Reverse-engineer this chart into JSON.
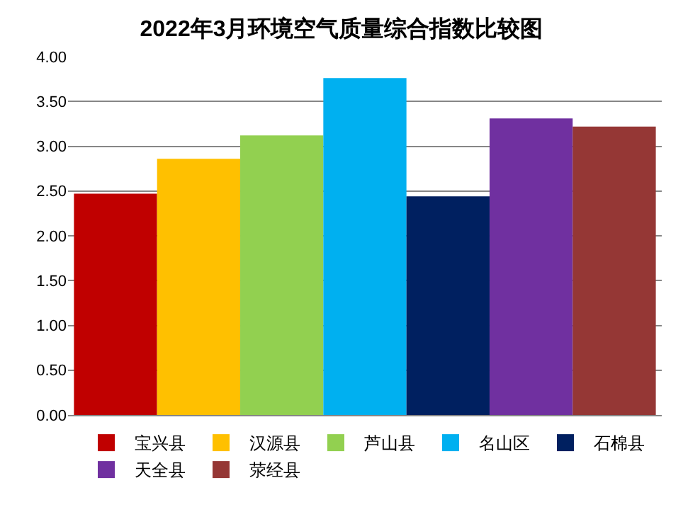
{
  "chart_data": {
    "type": "bar",
    "title": "2022年3月环境空气质量综合指数比较图",
    "categories": [
      null
    ],
    "series": [
      {
        "name": "宝兴县",
        "color": "#c00000",
        "values": [
          2.47
        ]
      },
      {
        "name": "汉源县",
        "color": "#ffc000",
        "values": [
          2.86
        ]
      },
      {
        "name": "芦山县",
        "color": "#92d050",
        "values": [
          3.12
        ]
      },
      {
        "name": "名山区",
        "color": "#00b0f0",
        "values": [
          3.76
        ]
      },
      {
        "name": "石棉县",
        "color": "#002060",
        "values": [
          2.44
        ]
      },
      {
        "name": "天全县",
        "color": "#7030a0",
        "values": [
          3.31
        ]
      },
      {
        "name": "荥经县",
        "color": "#953735",
        "values": [
          3.22
        ]
      }
    ],
    "ylim": [
      0,
      4
    ],
    "yticks": [
      {
        "value": 0,
        "label": "0.00"
      },
      {
        "value": 0.5,
        "label": "0.50"
      },
      {
        "value": 1,
        "label": "1.00"
      },
      {
        "value": 1.5,
        "label": "1.50"
      },
      {
        "value": 2,
        "label": "2.00"
      },
      {
        "value": 2.5,
        "label": "2.50"
      },
      {
        "value": 3,
        "label": "3.00"
      },
      {
        "value": 3.5,
        "label": "3.50"
      },
      {
        "value": 4,
        "label": "4.00"
      }
    ],
    "grid": "y",
    "legend": "bottom"
  }
}
